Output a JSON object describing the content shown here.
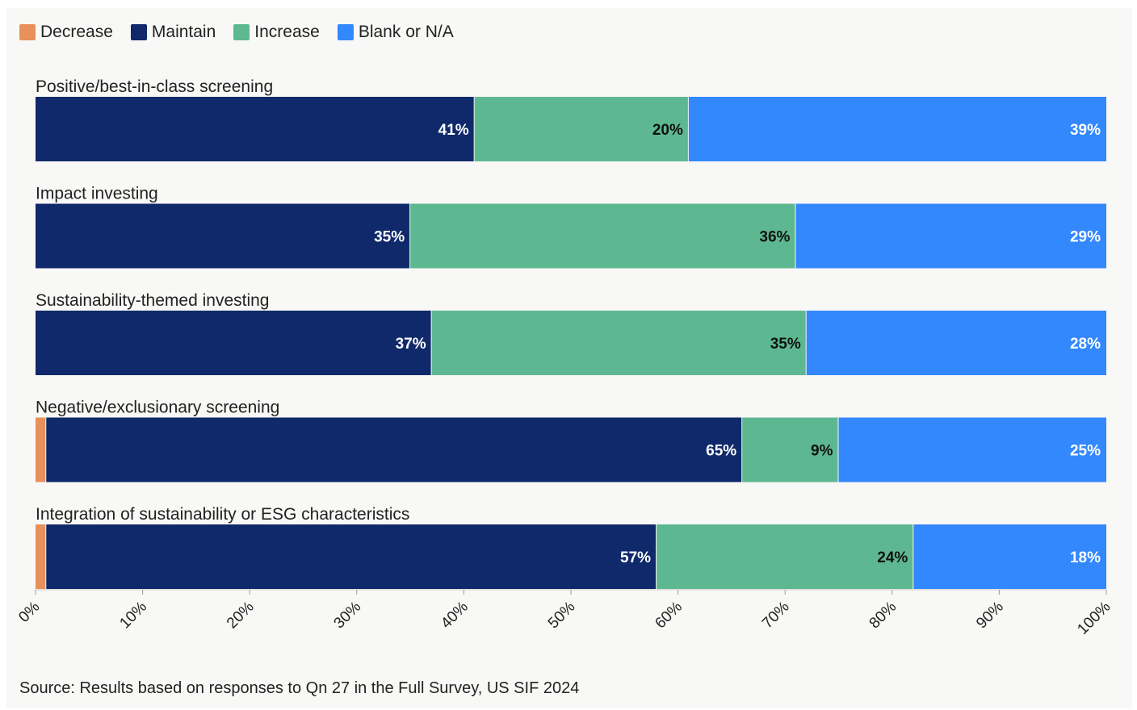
{
  "colors": {
    "Decrease": "#e8915a",
    "Maintain": "#10296a",
    "Increase": "#5db891",
    "Blank or N/A": "#3388fd"
  },
  "source": "Source: Results based on responses to Qn 27 in the Full Survey, US SIF 2024",
  "chart_data": {
    "type": "bar",
    "orientation": "horizontal",
    "stacked": true,
    "legend": [
      "Decrease",
      "Maintain",
      "Increase",
      "Blank or N/A"
    ],
    "legend_placement": "top-left",
    "categories": [
      "Positive/best-in-class screening",
      "Impact investing",
      "Sustainability-themed investing",
      "Negative/exclusionary screening",
      "Integration of sustainability or ESG characteristics"
    ],
    "series": [
      {
        "name": "Decrease",
        "values": [
          0,
          0,
          0,
          1,
          1
        ],
        "labels": [
          "",
          "",
          "",
          "",
          ""
        ]
      },
      {
        "name": "Maintain",
        "values": [
          41,
          35,
          37,
          65,
          57
        ],
        "labels": [
          "41%",
          "35%",
          "37%",
          "65%",
          "57%"
        ]
      },
      {
        "name": "Increase",
        "values": [
          20,
          36,
          35,
          9,
          24
        ],
        "labels": [
          "20%",
          "36%",
          "35%",
          "9%",
          "24%"
        ]
      },
      {
        "name": "Blank or N/A",
        "values": [
          39,
          29,
          28,
          25,
          18
        ],
        "labels": [
          "39%",
          "29%",
          "28%",
          "25%",
          "18%"
        ]
      }
    ],
    "xlim": [
      0,
      100
    ],
    "x_ticks": [
      "0%",
      "10%",
      "20%",
      "30%",
      "40%",
      "50%",
      "60%",
      "70%",
      "80%",
      "90%",
      "100%"
    ],
    "grid": false
  }
}
